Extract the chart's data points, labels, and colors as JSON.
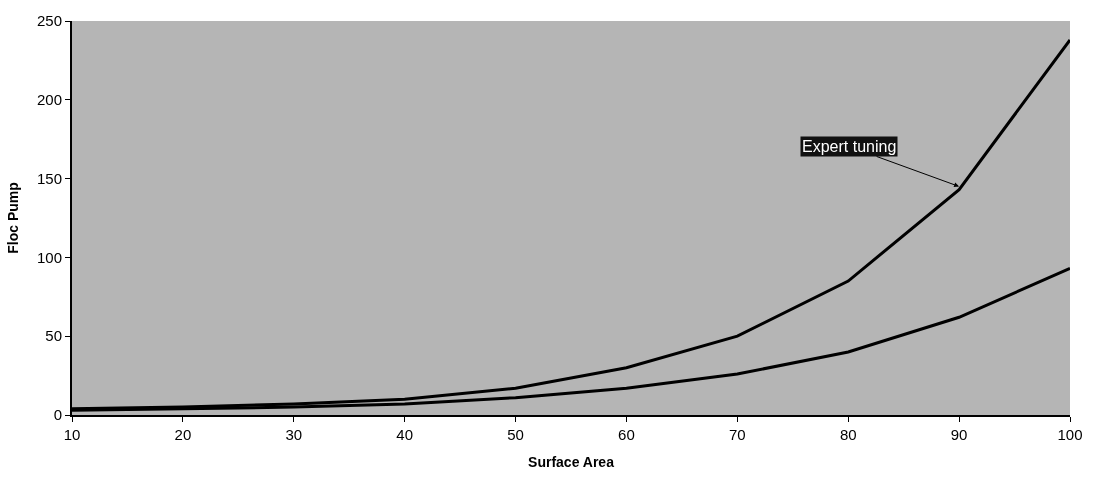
{
  "chart_data": {
    "type": "line",
    "xlabel": "Surface Area",
    "ylabel": "Floc Pump",
    "x": [
      10,
      20,
      30,
      40,
      50,
      60,
      70,
      80,
      90,
      100
    ],
    "series": [
      {
        "color": "#000000",
        "values": [
          4,
          5,
          7,
          10,
          17,
          30,
          50,
          85,
          143,
          238
        ]
      },
      {
        "color": "#000000",
        "values": [
          3,
          4,
          5,
          7,
          11,
          17,
          26,
          40,
          62,
          93
        ]
      }
    ],
    "xlim": [
      10,
      100
    ],
    "xticks": [
      10,
      20,
      30,
      40,
      50,
      60,
      70,
      80,
      90,
      100
    ],
    "ylim": [
      0,
      250
    ],
    "yticks": [
      0,
      50,
      100,
      150,
      200,
      250
    ],
    "annotations": [
      {
        "text": "Expert tuning",
        "x": 90,
        "y": 145
      }
    ],
    "grid": false,
    "line_style": "solid"
  }
}
